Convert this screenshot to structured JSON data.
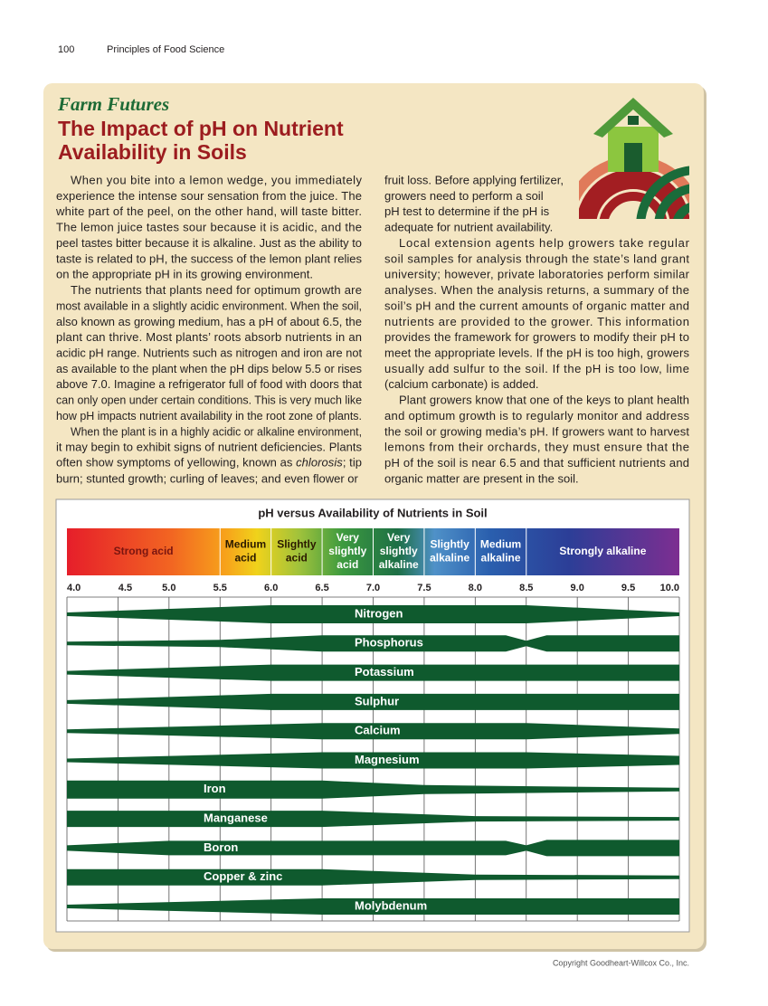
{
  "header": {
    "page_number": "100",
    "book_title": "Principles of Food Science"
  },
  "feature": {
    "label": "Farm Futures",
    "title_lines": [
      "The Impact of pH on Nutrient",
      "Availability in Soils"
    ]
  },
  "columns": [
    {
      "paragraphs": [
        {
          "lines": [
            "When you bite into a lemon wedge, you immediately",
            "experience the intense sour sensation from the juice. The",
            "white part of the peel, on the other hand, will taste bitter.",
            "The lemon juice tastes sour because it is acidic, and the",
            "peel tastes bitter because it is alkaline. Just as the ability to",
            "taste is related to pH, the success of the lemon plant relies",
            "on the appropriate pH in its growing environment."
          ]
        },
        {
          "lines": [
            "The nutrients that plants need for optimum growth are",
            "most available in a slightly acidic environment. When the soil,",
            "also known as growing medium, has a pH of about 6.5, the",
            "plant can thrive. Most plants’ roots absorb nutrients in an",
            "acidic pH range. Nutrients such as nitrogen and iron are not",
            "as available to the plant when the pH dips below 5.5 or rises",
            "above 7.0. Imagine a refrigerator full of food with doors that",
            "can only open under certain conditions. This is very much like",
            "how pH impacts nutrient availability in the root zone of plants."
          ]
        },
        {
          "lines": [
            "When the plant is in a highly acidic or alkaline environment,",
            "it may begin to exhibit signs of nutrient deficiencies. Plants",
            [
              "often show symptoms of yellowing, known as ",
              "chlorosis",
              "; tip"
            ],
            "burn; stunted growth; curling of leaves; and even flower or"
          ]
        }
      ]
    },
    {
      "paragraphs": [
        {
          "lines": [
            "fruit loss. Before applying fertilizer,",
            "growers need to perform a soil",
            "pH test to determine if the pH is",
            "adequate for nutrient availability."
          ]
        },
        {
          "lines": [
            "Local extension agents help growers take regular",
            "soil samples for analysis through the state’s land grant",
            "university; however, private laboratories perform similar",
            "analyses. When the analysis returns, a summary of the",
            "soil’s pH and the current amounts of organic matter and",
            "nutrients are provided to the grower. This information",
            "provides the framework for growers to modify their pH to",
            "meet the appropriate levels. If the pH is too high, growers",
            "usually add sulfur to the soil. If the pH is too low, lime",
            "(calcium carbonate) is added."
          ]
        },
        {
          "lines": [
            "Plant growers know that one of the keys to plant health",
            "and optimum growth is to regularly monitor and address",
            "the soil or growing media’s pH. If growers want to harvest",
            "lemons from their orchards, they must ensure that the",
            "pH of the soil is near 6.5 and that sufficient nutrients and",
            "organic matter are present in the soil."
          ]
        }
      ]
    }
  ],
  "figure": {
    "title": "pH versus Availability of Nutrients in Soil",
    "zones": [
      {
        "label_lines": [
          "Strong acid"
        ]
      },
      {
        "label_lines": [
          "Medium",
          "acid"
        ]
      },
      {
        "label_lines": [
          "Slightly",
          "acid"
        ]
      },
      {
        "label_lines": [
          "Very",
          "slightly",
          "acid"
        ]
      },
      {
        "label_lines": [
          "Very",
          "slightly",
          "alkaline"
        ]
      },
      {
        "label_lines": [
          "Slightly",
          "alkaline"
        ]
      },
      {
        "label_lines": [
          "Medium",
          "alkaline"
        ]
      },
      {
        "label_lines": [
          "Strongly alkaline"
        ]
      }
    ],
    "scale_labels": [
      "4.0",
      "4.5",
      "5.0",
      "5.5",
      "6.0",
      "6.5",
      "7.0",
      "7.5",
      "8.0",
      "8.5",
      "9.0",
      "9.5",
      "10.0"
    ],
    "nutrients": [
      "Nitrogen",
      "Phosphorus",
      "Potassium",
      "Sulphur",
      "Calcium",
      "Magnesium",
      "Iron",
      "Manganese",
      "Boron",
      "Copper & zinc",
      "Molybdenum"
    ]
  },
  "footer": {
    "copyright": "Copyright Goodheart-Willcox Co., Inc."
  }
}
